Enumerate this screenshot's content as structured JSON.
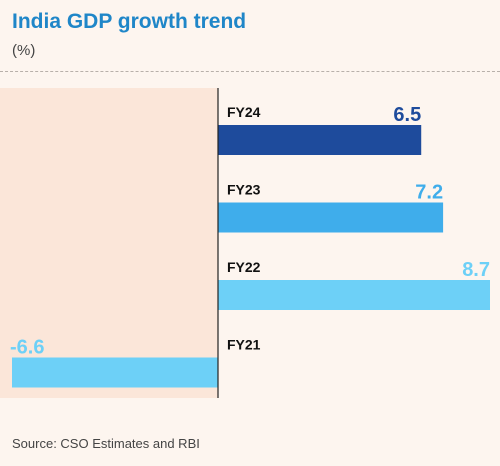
{
  "chart_data": {
    "type": "bar",
    "orientation": "horizontal",
    "title": "India GDP growth trend",
    "subtitle": "(%)",
    "categories": [
      "FY24",
      "FY23",
      "FY22",
      "FY21"
    ],
    "values": [
      6.5,
      7.2,
      8.7,
      -6.6
    ],
    "bar_colors": [
      "#1e4b9c",
      "#3fadeb",
      "#6dd0f7",
      "#6dd0f7"
    ],
    "label_colors": [
      "#1e4b9c",
      "#3fadeb",
      "#6dd0f7",
      "#6dd0f7"
    ],
    "xlim": [
      -6.6,
      8.7
    ],
    "grid": false,
    "source": "Source: CSO Estimates and RBI"
  }
}
